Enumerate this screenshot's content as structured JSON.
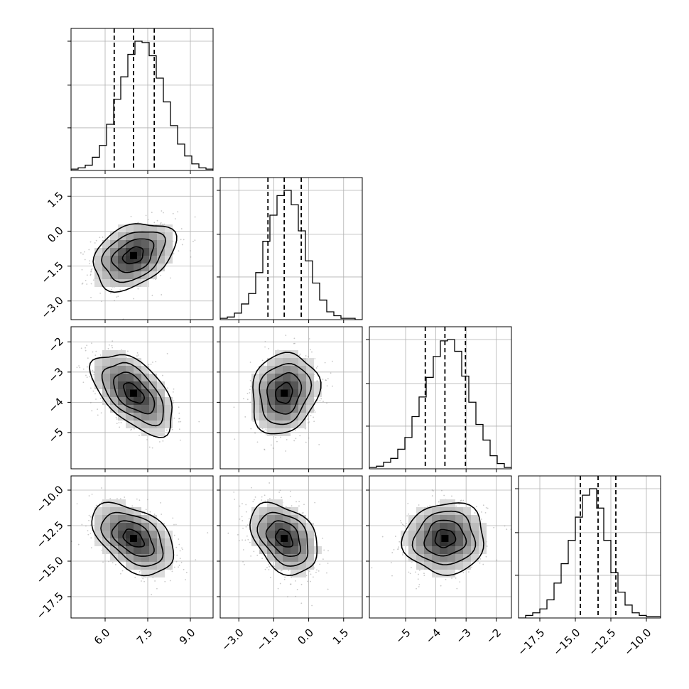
{
  "chart_data": {
    "type": "corner",
    "grid": true,
    "params": [
      {
        "range": [
          4.8,
          9.8
        ],
        "ticks": [
          6.0,
          7.5,
          9.0
        ],
        "tick_labels": [
          "6.0",
          "7.5",
          "9.0"
        ],
        "quantiles": [
          6.32,
          7.0,
          7.73
        ],
        "hist": [
          0.01,
          0.02,
          0.04,
          0.1,
          0.19,
          0.35,
          0.54,
          0.71,
          0.88,
          0.98,
          0.97,
          0.87,
          0.7,
          0.52,
          0.34,
          0.2,
          0.11,
          0.05,
          0.02,
          0.01
        ]
      },
      {
        "range": [
          -3.8,
          2.3
        ],
        "ticks": [
          -3.0,
          -1.5,
          0.0,
          1.5
        ],
        "tick_labels": [
          "−3.0",
          "−1.5",
          "0.0",
          "1.5"
        ],
        "quantiles": [
          -1.75,
          -1.05,
          -0.32
        ],
        "hist": [
          0.01,
          0.02,
          0.05,
          0.12,
          0.2,
          0.36,
          0.6,
          0.8,
          0.95,
          0.99,
          0.88,
          0.68,
          0.45,
          0.28,
          0.15,
          0.06,
          0.03,
          0.01,
          0.01,
          0.0
        ]
      },
      {
        "range": [
          -6.2,
          -1.5
        ],
        "ticks": [
          -5,
          -4,
          -3,
          -2
        ],
        "tick_labels": [
          "−5",
          "−4",
          "−3",
          "−2"
        ],
        "quantiles": [
          -4.35,
          -3.7,
          -3.02
        ],
        "hist": [
          0.01,
          0.02,
          0.05,
          0.08,
          0.15,
          0.24,
          0.4,
          0.55,
          0.7,
          0.86,
          0.98,
          0.99,
          0.9,
          0.71,
          0.51,
          0.34,
          0.22,
          0.1,
          0.04,
          0.01
        ]
      },
      {
        "range": [
          -19.0,
          -9.0
        ],
        "ticks": [
          -17.5,
          -15.0,
          -12.5,
          -10.0
        ],
        "tick_labels": [
          "−17.5",
          "−15.0",
          "−12.5",
          "−10.0"
        ],
        "quantiles": [
          -14.65,
          -13.4,
          -12.15
        ],
        "hist": [
          0.0,
          0.02,
          0.04,
          0.07,
          0.14,
          0.27,
          0.42,
          0.6,
          0.78,
          0.95,
          1.0,
          0.85,
          0.6,
          0.35,
          0.2,
          0.1,
          0.04,
          0.02,
          0.01,
          0.01
        ]
      }
    ],
    "pairs": [
      {
        "row": 1,
        "col": 0,
        "center": [
          7.0,
          -1.05
        ],
        "sd": [
          0.72,
          0.72
        ],
        "corr": 0.35
      },
      {
        "row": 2,
        "col": 0,
        "center": [
          7.0,
          -3.7
        ],
        "sd": [
          0.72,
          0.67
        ],
        "corr": -0.55
      },
      {
        "row": 2,
        "col": 1,
        "center": [
          -1.05,
          -3.7
        ],
        "sd": [
          0.72,
          0.67
        ],
        "corr": 0.15
      },
      {
        "row": 3,
        "col": 0,
        "center": [
          7.0,
          -13.4
        ],
        "sd": [
          0.72,
          1.25
        ],
        "corr": -0.45
      },
      {
        "row": 3,
        "col": 1,
        "center": [
          -1.05,
          -13.4
        ],
        "sd": [
          0.72,
          1.25
        ],
        "corr": -0.35
      },
      {
        "row": 3,
        "col": 2,
        "center": [
          -3.7,
          -13.4
        ],
        "sd": [
          0.67,
          1.25
        ],
        "corr": 0.05
      }
    ],
    "contour_levels_sigma": [
      0.5,
      1.0,
      1.5,
      2.0
    ],
    "colors": {
      "line": "#000000",
      "scatter": "#9a9a9a",
      "grid": "#b0b0b0"
    }
  }
}
